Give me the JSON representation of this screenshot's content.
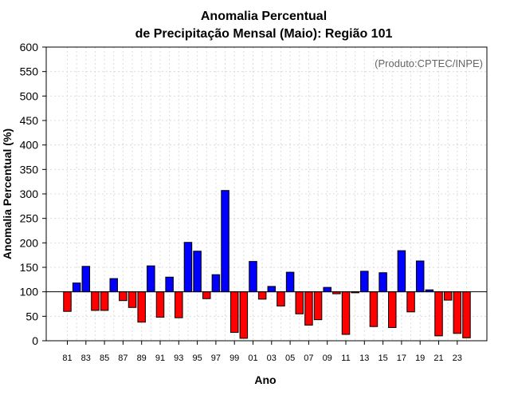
{
  "chart_data": {
    "type": "bar",
    "title": "Anomalia Percentual",
    "subtitle": "de Precipitação Mensal (Maio): Região 101",
    "xlabel": "Ano",
    "ylabel": "Anomalia Percentual (%)",
    "annotation": "(Produto:CPTEC/INPE)",
    "ylim": [
      0,
      600
    ],
    "yticks": [
      0,
      50,
      100,
      150,
      200,
      250,
      300,
      350,
      400,
      450,
      500,
      550,
      600
    ],
    "baseline": 100,
    "grid": true,
    "colors": {
      "above": "#0000ff",
      "below": "#ff0000",
      "baseline": "#000000"
    },
    "categories": [
      "1981",
      "1982",
      "1983",
      "1984",
      "1985",
      "1986",
      "1987",
      "1988",
      "1989",
      "1990",
      "1991",
      "1992",
      "1993",
      "1994",
      "1995",
      "1996",
      "1997",
      "1998",
      "1999",
      "2000",
      "2001",
      "2002",
      "2003",
      "2004",
      "2005",
      "2006",
      "2007",
      "2008",
      "2009",
      "2010",
      "2011",
      "2012",
      "2013",
      "2014",
      "2015",
      "2016",
      "2017",
      "2018",
      "2019",
      "2020",
      "2021",
      "2022",
      "2023",
      "2024"
    ],
    "tick_labels": [
      "81",
      "83",
      "85",
      "87",
      "89",
      "91",
      "93",
      "95",
      "97",
      "99",
      "01",
      "03",
      "05",
      "07",
      "09",
      "11",
      "13",
      "15",
      "17",
      "19",
      "21",
      "23"
    ],
    "values": [
      60,
      118,
      152,
      62,
      62,
      127,
      82,
      68,
      38,
      153,
      48,
      130,
      47,
      201,
      183,
      86,
      135,
      307,
      17,
      5,
      162,
      85,
      111,
      71,
      140,
      55,
      32,
      43,
      109,
      96,
      13,
      98,
      142,
      29,
      139,
      27,
      184,
      59,
      163,
      104,
      10,
      83,
      15,
      6
    ]
  }
}
